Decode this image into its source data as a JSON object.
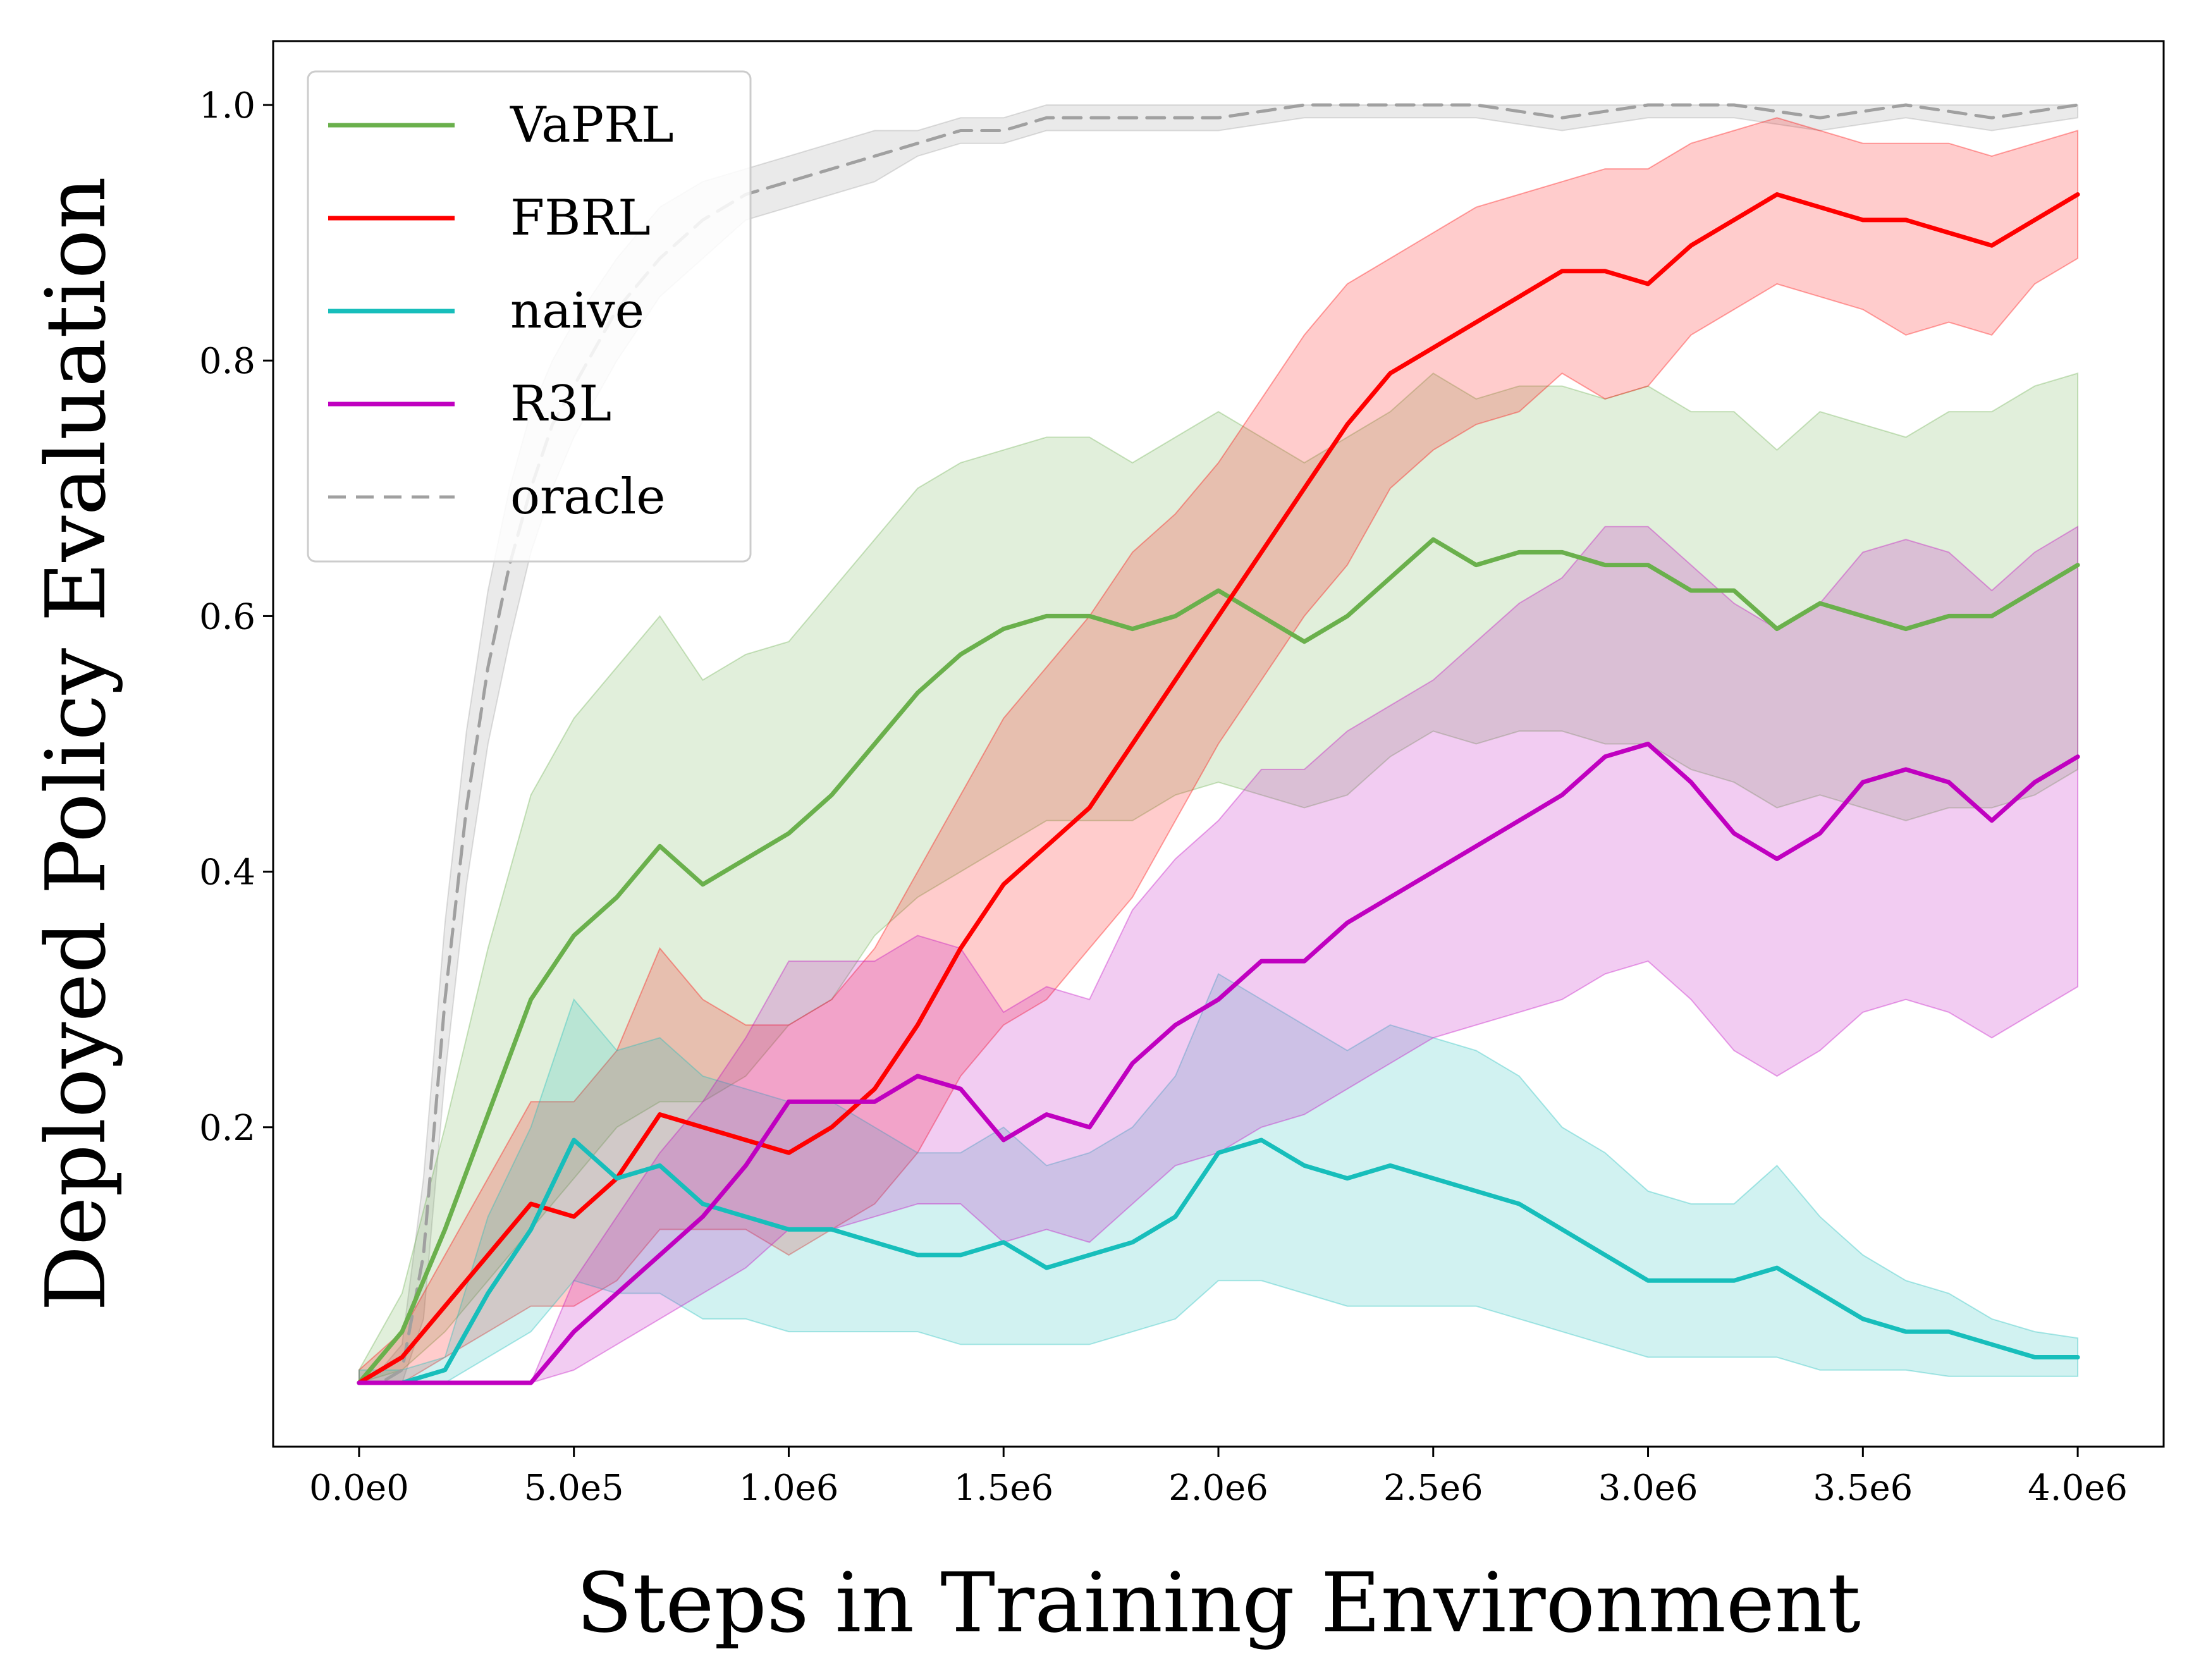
{
  "chart_data": {
    "type": "line",
    "title": "",
    "xlabel": "Steps in Training Environment",
    "ylabel": "Deployed Policy Evaluation",
    "xlim": [
      -200000,
      4200000
    ],
    "ylim": [
      -0.05,
      1.05
    ],
    "x_ticks": [
      0,
      500000,
      1000000,
      1500000,
      2000000,
      2500000,
      3000000,
      3500000,
      4000000
    ],
    "x_tick_labels": [
      "0.0e0",
      "5.0e5",
      "1.0e6",
      "1.5e6",
      "2.0e6",
      "2.5e6",
      "3.0e6",
      "3.5e6",
      "4.0e6"
    ],
    "y_ticks": [
      0.2,
      0.4,
      0.6,
      0.8,
      1.0
    ],
    "y_tick_labels": [
      "0.2",
      "0.4",
      "0.6",
      "0.8",
      "1.0"
    ],
    "grid": false,
    "legend_position": "top-left",
    "series": [
      {
        "name": "VaPRL",
        "color": "#6ab04c",
        "dash": "solid",
        "x": [
          0,
          100000,
          200000,
          300000,
          400000,
          500000,
          600000,
          700000,
          800000,
          900000,
          1000000,
          1100000,
          1200000,
          1300000,
          1400000,
          1500000,
          1600000,
          1700000,
          1800000,
          1900000,
          2000000,
          2100000,
          2200000,
          2300000,
          2400000,
          2500000,
          2600000,
          2700000,
          2800000,
          2900000,
          3000000,
          3100000,
          3200000,
          3300000,
          3400000,
          3500000,
          3600000,
          3700000,
          3800000,
          3900000,
          4000000
        ],
        "y": [
          0.0,
          0.04,
          0.12,
          0.21,
          0.3,
          0.35,
          0.38,
          0.42,
          0.39,
          0.41,
          0.43,
          0.46,
          0.5,
          0.54,
          0.57,
          0.59,
          0.6,
          0.6,
          0.59,
          0.6,
          0.62,
          0.6,
          0.58,
          0.6,
          0.63,
          0.66,
          0.64,
          0.65,
          0.65,
          0.64,
          0.64,
          0.62,
          0.62,
          0.59,
          0.61,
          0.6,
          0.59,
          0.6,
          0.6,
          0.62,
          0.64
        ],
        "lower": [
          0.0,
          0.01,
          0.04,
          0.08,
          0.12,
          0.16,
          0.2,
          0.22,
          0.22,
          0.24,
          0.28,
          0.3,
          0.35,
          0.38,
          0.4,
          0.42,
          0.44,
          0.44,
          0.44,
          0.46,
          0.47,
          0.46,
          0.45,
          0.46,
          0.49,
          0.51,
          0.5,
          0.51,
          0.51,
          0.5,
          0.5,
          0.48,
          0.47,
          0.45,
          0.46,
          0.45,
          0.44,
          0.45,
          0.45,
          0.46,
          0.48
        ],
        "upper": [
          0.01,
          0.07,
          0.2,
          0.34,
          0.46,
          0.52,
          0.56,
          0.6,
          0.55,
          0.57,
          0.58,
          0.62,
          0.66,
          0.7,
          0.72,
          0.73,
          0.74,
          0.74,
          0.72,
          0.74,
          0.76,
          0.74,
          0.72,
          0.74,
          0.76,
          0.79,
          0.77,
          0.78,
          0.78,
          0.77,
          0.78,
          0.76,
          0.76,
          0.73,
          0.76,
          0.75,
          0.74,
          0.76,
          0.76,
          0.78,
          0.79
        ]
      },
      {
        "name": "FBRL",
        "color": "#ff0000",
        "dash": "solid",
        "x": [
          0,
          100000,
          200000,
          300000,
          400000,
          500000,
          600000,
          700000,
          800000,
          900000,
          1000000,
          1100000,
          1200000,
          1300000,
          1400000,
          1500000,
          1600000,
          1700000,
          1800000,
          1900000,
          2000000,
          2100000,
          2200000,
          2300000,
          2400000,
          2500000,
          2600000,
          2700000,
          2800000,
          2900000,
          3000000,
          3100000,
          3200000,
          3300000,
          3400000,
          3500000,
          3600000,
          3700000,
          3800000,
          3900000,
          4000000
        ],
        "y": [
          0.0,
          0.02,
          0.06,
          0.1,
          0.14,
          0.13,
          0.16,
          0.21,
          0.2,
          0.19,
          0.18,
          0.2,
          0.23,
          0.28,
          0.34,
          0.39,
          0.42,
          0.45,
          0.5,
          0.55,
          0.6,
          0.65,
          0.7,
          0.75,
          0.79,
          0.81,
          0.83,
          0.85,
          0.87,
          0.87,
          0.86,
          0.89,
          0.91,
          0.93,
          0.92,
          0.91,
          0.91,
          0.9,
          0.89,
          0.91,
          0.93
        ],
        "lower": [
          0.0,
          0.0,
          0.02,
          0.04,
          0.06,
          0.06,
          0.08,
          0.12,
          0.12,
          0.12,
          0.1,
          0.12,
          0.14,
          0.18,
          0.24,
          0.28,
          0.3,
          0.34,
          0.38,
          0.44,
          0.5,
          0.55,
          0.6,
          0.64,
          0.7,
          0.73,
          0.75,
          0.76,
          0.79,
          0.77,
          0.78,
          0.82,
          0.84,
          0.86,
          0.85,
          0.84,
          0.82,
          0.83,
          0.82,
          0.86,
          0.88
        ],
        "upper": [
          0.01,
          0.04,
          0.1,
          0.16,
          0.22,
          0.22,
          0.26,
          0.34,
          0.3,
          0.28,
          0.28,
          0.3,
          0.34,
          0.4,
          0.46,
          0.52,
          0.56,
          0.6,
          0.65,
          0.68,
          0.72,
          0.77,
          0.82,
          0.86,
          0.88,
          0.9,
          0.92,
          0.93,
          0.94,
          0.95,
          0.95,
          0.97,
          0.98,
          0.99,
          0.98,
          0.97,
          0.97,
          0.97,
          0.96,
          0.97,
          0.98
        ]
      },
      {
        "name": "naive",
        "color": "#17bebb",
        "dash": "solid",
        "x": [
          0,
          100000,
          200000,
          300000,
          400000,
          500000,
          600000,
          700000,
          800000,
          900000,
          1000000,
          1100000,
          1200000,
          1300000,
          1400000,
          1500000,
          1600000,
          1700000,
          1800000,
          1900000,
          2000000,
          2100000,
          2200000,
          2300000,
          2400000,
          2500000,
          2600000,
          2700000,
          2800000,
          2900000,
          3000000,
          3100000,
          3200000,
          3300000,
          3400000,
          3500000,
          3600000,
          3700000,
          3800000,
          3900000,
          4000000
        ],
        "y": [
          0.0,
          0.0,
          0.01,
          0.07,
          0.12,
          0.19,
          0.16,
          0.17,
          0.14,
          0.13,
          0.12,
          0.12,
          0.11,
          0.1,
          0.1,
          0.11,
          0.09,
          0.1,
          0.11,
          0.13,
          0.18,
          0.19,
          0.17,
          0.16,
          0.17,
          0.16,
          0.15,
          0.14,
          0.12,
          0.1,
          0.08,
          0.08,
          0.08,
          0.09,
          0.07,
          0.05,
          0.04,
          0.04,
          0.03,
          0.02,
          0.02
        ],
        "lower": [
          0.0,
          0.0,
          0.0,
          0.02,
          0.04,
          0.08,
          0.07,
          0.07,
          0.05,
          0.05,
          0.04,
          0.04,
          0.04,
          0.04,
          0.03,
          0.03,
          0.03,
          0.03,
          0.04,
          0.05,
          0.08,
          0.08,
          0.07,
          0.06,
          0.06,
          0.06,
          0.06,
          0.05,
          0.04,
          0.03,
          0.02,
          0.02,
          0.02,
          0.02,
          0.01,
          0.01,
          0.01,
          0.005,
          0.005,
          0.005,
          0.005
        ],
        "upper": [
          0.01,
          0.01,
          0.02,
          0.13,
          0.2,
          0.3,
          0.26,
          0.27,
          0.24,
          0.23,
          0.22,
          0.22,
          0.2,
          0.18,
          0.18,
          0.2,
          0.17,
          0.18,
          0.2,
          0.24,
          0.32,
          0.3,
          0.28,
          0.26,
          0.28,
          0.27,
          0.26,
          0.24,
          0.2,
          0.18,
          0.15,
          0.14,
          0.14,
          0.17,
          0.13,
          0.1,
          0.08,
          0.07,
          0.05,
          0.04,
          0.035
        ]
      },
      {
        "name": "R3L",
        "color": "#c000c0",
        "dash": "solid",
        "x": [
          0,
          100000,
          200000,
          300000,
          400000,
          500000,
          600000,
          700000,
          800000,
          900000,
          1000000,
          1100000,
          1200000,
          1300000,
          1400000,
          1500000,
          1600000,
          1700000,
          1800000,
          1900000,
          2000000,
          2100000,
          2200000,
          2300000,
          2400000,
          2500000,
          2600000,
          2700000,
          2800000,
          2900000,
          3000000,
          3100000,
          3200000,
          3300000,
          3400000,
          3500000,
          3600000,
          3700000,
          3800000,
          3900000,
          4000000
        ],
        "y": [
          0.0,
          0.0,
          0.0,
          0.0,
          0.0,
          0.04,
          0.07,
          0.1,
          0.13,
          0.17,
          0.22,
          0.22,
          0.22,
          0.24,
          0.23,
          0.19,
          0.21,
          0.2,
          0.25,
          0.28,
          0.3,
          0.33,
          0.33,
          0.36,
          0.38,
          0.4,
          0.42,
          0.44,
          0.46,
          0.49,
          0.5,
          0.47,
          0.43,
          0.41,
          0.43,
          0.47,
          0.48,
          0.47,
          0.44,
          0.47,
          0.49
        ],
        "lower": [
          0.0,
          0.0,
          0.0,
          0.0,
          0.0,
          0.01,
          0.03,
          0.05,
          0.07,
          0.09,
          0.12,
          0.12,
          0.13,
          0.14,
          0.14,
          0.11,
          0.12,
          0.11,
          0.14,
          0.17,
          0.18,
          0.2,
          0.21,
          0.23,
          0.25,
          0.27,
          0.28,
          0.29,
          0.3,
          0.32,
          0.33,
          0.3,
          0.26,
          0.24,
          0.26,
          0.29,
          0.3,
          0.29,
          0.27,
          0.29,
          0.31
        ],
        "upper": [
          0.0,
          0.0,
          0.0,
          0.0,
          0.0,
          0.08,
          0.13,
          0.18,
          0.22,
          0.27,
          0.33,
          0.33,
          0.33,
          0.35,
          0.34,
          0.29,
          0.31,
          0.3,
          0.37,
          0.41,
          0.44,
          0.48,
          0.48,
          0.51,
          0.53,
          0.55,
          0.58,
          0.61,
          0.63,
          0.67,
          0.67,
          0.64,
          0.61,
          0.59,
          0.61,
          0.65,
          0.66,
          0.65,
          0.62,
          0.65,
          0.67
        ]
      },
      {
        "name": "oracle",
        "color": "#a0a0a0",
        "dash": "dashed",
        "x": [
          0,
          50000,
          100000,
          150000,
          200000,
          250000,
          300000,
          350000,
          400000,
          450000,
          500000,
          600000,
          700000,
          800000,
          900000,
          1000000,
          1100000,
          1200000,
          1300000,
          1400000,
          1500000,
          1600000,
          1800000,
          2000000,
          2200000,
          2400000,
          2600000,
          2800000,
          3000000,
          3200000,
          3400000,
          3600000,
          3800000,
          4000000
        ],
        "y": [
          0.0,
          0.0,
          0.01,
          0.1,
          0.3,
          0.45,
          0.56,
          0.64,
          0.7,
          0.75,
          0.78,
          0.84,
          0.88,
          0.91,
          0.93,
          0.94,
          0.95,
          0.96,
          0.97,
          0.98,
          0.98,
          0.99,
          0.99,
          0.99,
          1.0,
          1.0,
          1.0,
          0.99,
          1.0,
          1.0,
          0.99,
          1.0,
          0.99,
          1.0
        ],
        "lower": [
          0.0,
          0.0,
          0.0,
          0.05,
          0.24,
          0.39,
          0.5,
          0.58,
          0.65,
          0.7,
          0.74,
          0.8,
          0.85,
          0.88,
          0.91,
          0.92,
          0.93,
          0.94,
          0.96,
          0.97,
          0.97,
          0.98,
          0.98,
          0.98,
          0.99,
          0.99,
          0.99,
          0.98,
          0.99,
          0.99,
          0.98,
          0.99,
          0.98,
          0.99
        ],
        "upper": [
          0.0,
          0.01,
          0.03,
          0.16,
          0.36,
          0.51,
          0.62,
          0.7,
          0.76,
          0.8,
          0.83,
          0.88,
          0.92,
          0.94,
          0.95,
          0.96,
          0.97,
          0.98,
          0.98,
          0.99,
          0.99,
          1.0,
          1.0,
          1.0,
          1.0,
          1.0,
          1.0,
          1.0,
          1.0,
          1.0,
          1.0,
          1.0,
          1.0,
          1.0
        ]
      }
    ]
  }
}
